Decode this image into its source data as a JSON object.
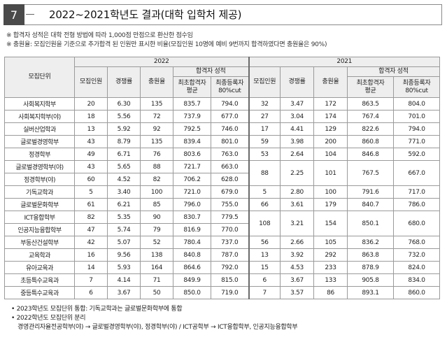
{
  "section": {
    "number": "7",
    "title": "2022~2021학년도 결과(대학 입학처 제공)"
  },
  "notes": [
    "※ 합격자 성적은 대학 전형 방법에 따라 1,000점 만점으로 환산한 점수임",
    "※ 충원율: 모집인원을 기준으로 추가합격 된 인원만 표시한 비율(모집인원 10명에 예비 9번까지 합격하였다면 충원율은 90%)"
  ],
  "table": {
    "unit_header": "모집단위",
    "years": [
      "2022",
      "2021"
    ],
    "col_recruit": "모집인원",
    "col_competition": "경쟁률",
    "col_fill": "충원율",
    "col_scores": "합격자 성적",
    "col_min1": "최초합격자",
    "col_min2": "평균",
    "col_final1": "최종등록자",
    "col_final2": "80%cut",
    "rows": [
      {
        "unit": "사회복지학부",
        "a": "20",
        "b": "6.30",
        "c": "135",
        "d": "835.7",
        "e": "794.0",
        "f": "32",
        "g": "3.47",
        "h": "172",
        "i": "863.5",
        "j": "804.0"
      },
      {
        "unit": "사회복지학부(야)",
        "a": "18",
        "b": "5.56",
        "c": "72",
        "d": "737.9",
        "e": "677.0",
        "f": "27",
        "g": "3.04",
        "h": "174",
        "i": "767.4",
        "j": "701.0"
      },
      {
        "unit": "실버산업학과",
        "a": "13",
        "b": "5.92",
        "c": "92",
        "d": "792.5",
        "e": "746.0",
        "f": "17",
        "g": "4.41",
        "h": "129",
        "i": "822.6",
        "j": "794.0"
      },
      {
        "unit": "글로벌경영학부",
        "a": "43",
        "b": "8.79",
        "c": "135",
        "d": "839.4",
        "e": "801.0",
        "f": "59",
        "g": "3.98",
        "h": "200",
        "i": "860.8",
        "j": "771.0"
      },
      {
        "unit": "정경학부",
        "a": "49",
        "b": "6.71",
        "c": "76",
        "d": "803.6",
        "e": "763.0",
        "f": "53",
        "g": "2.64",
        "h": "104",
        "i": "846.8",
        "j": "592.0"
      },
      {
        "unit": "글로벌경영학부(야)",
        "a": "43",
        "b": "5.65",
        "c": "88",
        "d": "721.7",
        "e": "663.0"
      },
      {
        "unit": "정경학부(야)",
        "a": "60",
        "b": "4.52",
        "c": "82",
        "d": "706.2",
        "e": "628.0"
      },
      {
        "unit": "기독교학과",
        "a": "5",
        "b": "3.40",
        "c": "100",
        "d": "721.0",
        "e": "679.0",
        "f": "5",
        "g": "2.80",
        "h": "100",
        "i": "791.6",
        "j": "717.0"
      },
      {
        "unit": "글로벌문화학부",
        "a": "61",
        "b": "6.21",
        "c": "85",
        "d": "796.0",
        "e": "755.0",
        "f": "66",
        "g": "3.61",
        "h": "179",
        "i": "840.7",
        "j": "786.0"
      },
      {
        "unit": "ICT융합학부",
        "a": "82",
        "b": "5.35",
        "c": "90",
        "d": "830.7",
        "e": "779.5"
      },
      {
        "unit": "인공지능융합학부",
        "a": "47",
        "b": "5.74",
        "c": "79",
        "d": "816.9",
        "e": "770.0"
      },
      {
        "unit": "부동산건설학부",
        "a": "42",
        "b": "5.07",
        "c": "52",
        "d": "780.4",
        "e": "737.0",
        "f": "56",
        "g": "2.66",
        "h": "105",
        "i": "836.2",
        "j": "768.0"
      },
      {
        "unit": "교육학과",
        "a": "16",
        "b": "9.56",
        "c": "138",
        "d": "840.8",
        "e": "787.0",
        "f": "13",
        "g": "3.92",
        "h": "292",
        "i": "863.8",
        "j": "732.0"
      },
      {
        "unit": "유아교육과",
        "a": "14",
        "b": "5.93",
        "c": "164",
        "d": "864.6",
        "e": "792.0",
        "f": "15",
        "g": "4.53",
        "h": "233",
        "i": "878.9",
        "j": "824.0"
      },
      {
        "unit": "초등특수교육과",
        "a": "7",
        "b": "4.14",
        "c": "71",
        "d": "849.9",
        "e": "815.0",
        "f": "6",
        "g": "3.67",
        "h": "133",
        "i": "905.8",
        "j": "834.0"
      },
      {
        "unit": "중등특수교육과",
        "a": "6",
        "b": "3.67",
        "c": "50",
        "d": "850.0",
        "e": "719.0",
        "f": "7",
        "g": "3.57",
        "h": "86",
        "i": "893.1",
        "j": "860.0"
      }
    ],
    "merged_2021": [
      {
        "f": "88",
        "g": "2.25",
        "h": "101",
        "i": "767.5",
        "j": "667.0"
      },
      {
        "f": "108",
        "g": "3.21",
        "h": "154",
        "i": "850.1",
        "j": "680.0"
      }
    ]
  },
  "footnotes": [
    "• 2023학년도 모집단위 통합: 기독교학과는 글로벌문화학부에 통합",
    "• 2022학년도 모집단위 분리",
    "경영관리자율전공학부(야) → 글로벌경영학부(야), 정경학부(야) / ICT공학부 → ICT융합학부, 인공지능융합학부"
  ]
}
